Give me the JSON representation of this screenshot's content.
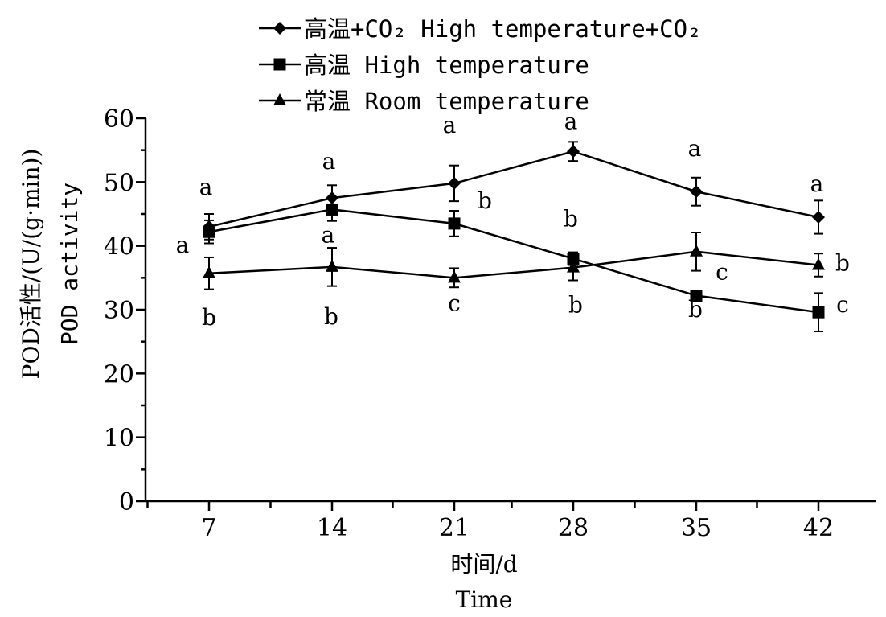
{
  "chart_data": {
    "type": "line",
    "xlabel": [
      "时间/d",
      "Time"
    ],
    "ylabel": [
      "POD活性/(U/(g·min))",
      "POD activity"
    ],
    "x": [
      7,
      14,
      21,
      28,
      35,
      42
    ],
    "xticks": [
      "7",
      "14",
      "21",
      "28",
      "35",
      "42"
    ],
    "ylim": [
      0,
      60
    ],
    "yticks": [
      "0",
      "10",
      "20",
      "30",
      "40",
      "50",
      "60"
    ],
    "grid": false,
    "legend_position": "top-left",
    "series": [
      {
        "name": "高温+CO₂ High temperature+CO₂",
        "marker": "diamond",
        "values": [
          43.0,
          47.5,
          49.8,
          54.8,
          48.5,
          44.5
        ],
        "errors": [
          2.0,
          2.0,
          2.8,
          1.5,
          2.2,
          2.6
        ],
        "labels": [
          "a",
          "a",
          "a",
          "a",
          "a",
          "a"
        ]
      },
      {
        "name": "高温 High temperature",
        "marker": "square",
        "values": [
          42.2,
          45.7,
          43.5,
          38.0,
          32.2,
          29.6
        ],
        "errors": [
          1.8,
          1.8,
          2.0,
          1.0,
          0.8,
          3.0
        ],
        "labels": [
          "a",
          "a",
          "b",
          "b",
          "c",
          "c"
        ]
      },
      {
        "name": "常温 Room temperature",
        "marker": "triangle",
        "values": [
          35.7,
          36.7,
          35.0,
          36.6,
          39.1,
          37.0
        ],
        "errors": [
          2.5,
          3.0,
          1.5,
          2.0,
          3.0,
          1.8
        ],
        "labels": [
          "b",
          "b",
          "c",
          "b",
          "b",
          "b"
        ]
      }
    ]
  }
}
